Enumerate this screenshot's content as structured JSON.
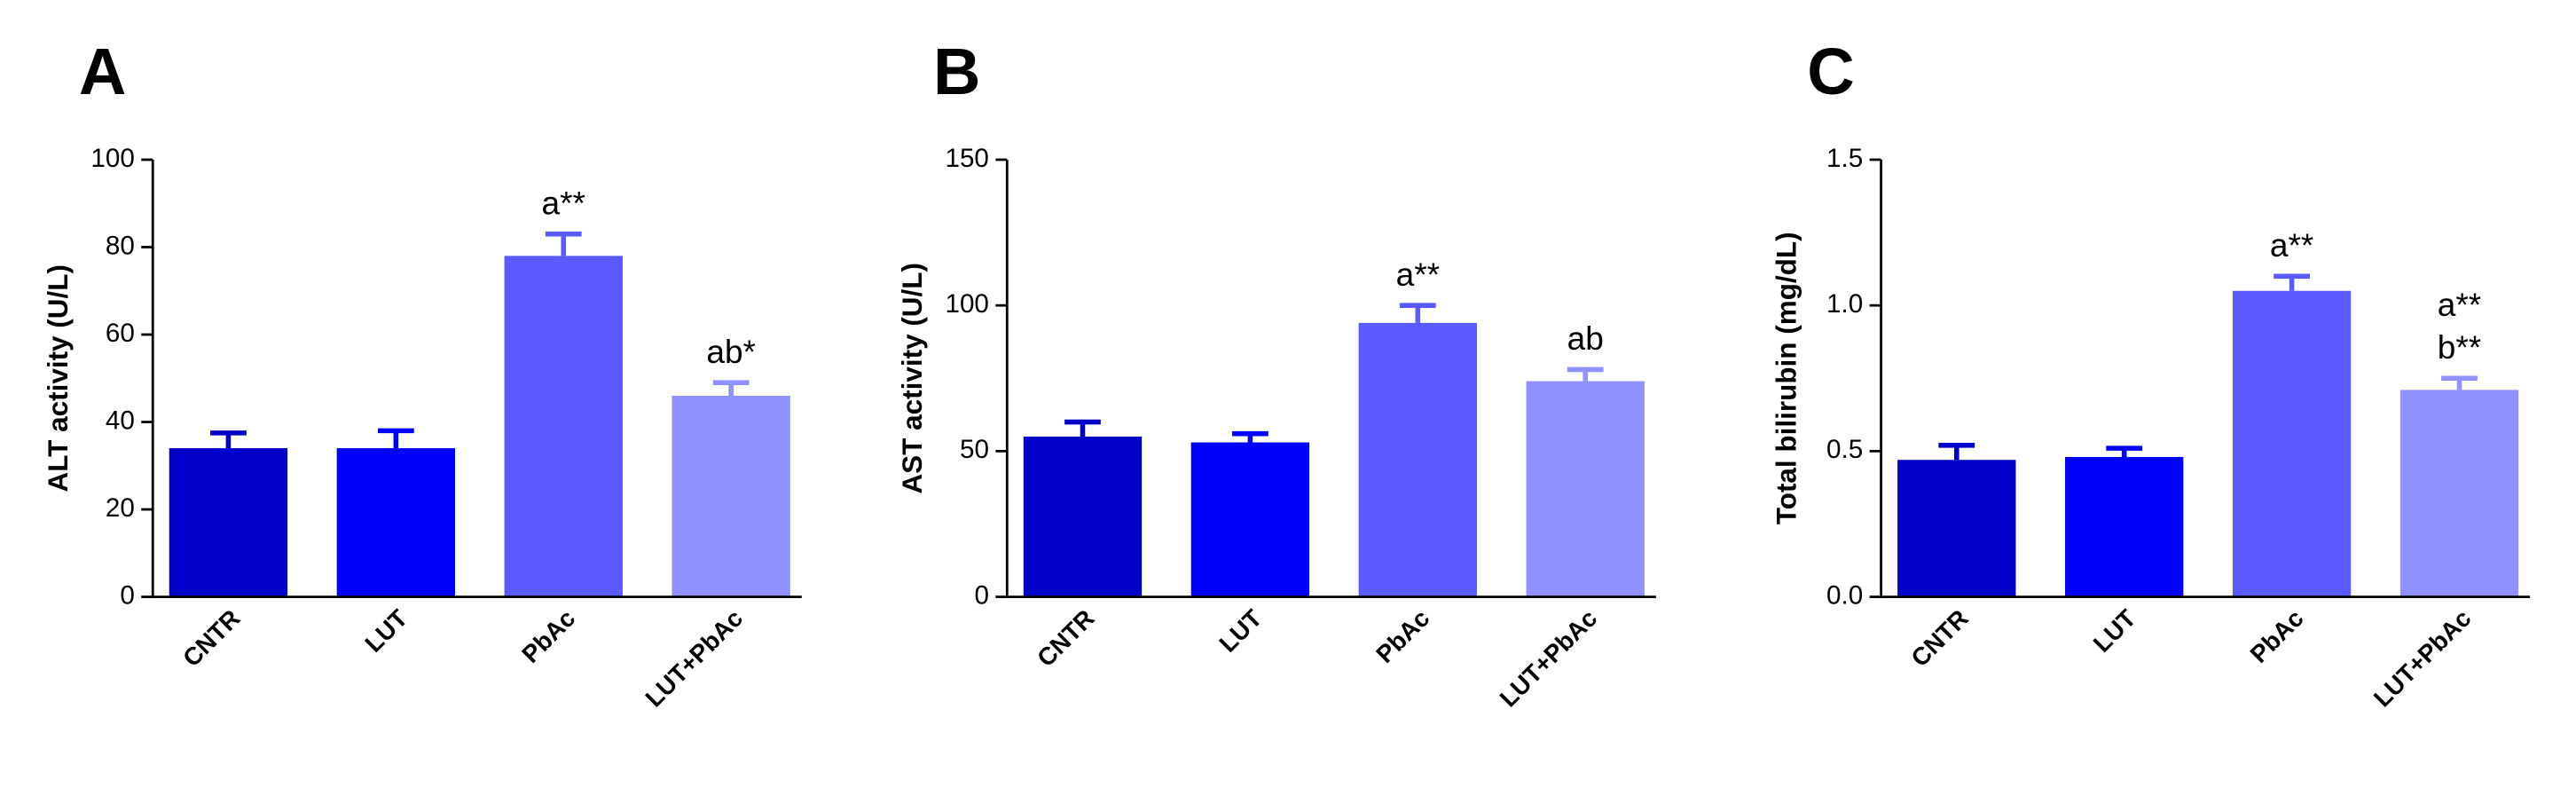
{
  "chart_data": [
    {
      "type": "bar",
      "panel": "A",
      "ylabel": "ALT activity (U/L)",
      "categories": [
        "CNTR",
        "LUT",
        "PbAc",
        "LUT+PbAc"
      ],
      "values": [
        34,
        34,
        78,
        46
      ],
      "errors": [
        3.5,
        4,
        5,
        3
      ],
      "colors": [
        "#0000c8",
        "#0000ff",
        "#5a5aff",
        "#9090ff"
      ],
      "ylim": [
        0,
        100
      ],
      "yticks": [
        0,
        20,
        40,
        60,
        80,
        100
      ],
      "annotations": [
        {
          "x": "PbAc",
          "text": [
            "a**"
          ]
        },
        {
          "x": "LUT+PbAc",
          "text": [
            "ab*"
          ]
        }
      ]
    },
    {
      "type": "bar",
      "panel": "B",
      "ylabel": "AST activity (U/L)",
      "categories": [
        "CNTR",
        "LUT",
        "PbAc",
        "LUT+PbAc"
      ],
      "values": [
        55,
        53,
        94,
        74
      ],
      "errors": [
        5,
        3,
        6,
        4
      ],
      "colors": [
        "#0000c8",
        "#0000ff",
        "#5a5aff",
        "#9090ff"
      ],
      "ylim": [
        0,
        150
      ],
      "yticks": [
        0,
        50,
        100,
        150
      ],
      "annotations": [
        {
          "x": "PbAc",
          "text": [
            "a**"
          ]
        },
        {
          "x": "LUT+PbAc",
          "text": [
            "ab"
          ]
        }
      ]
    },
    {
      "type": "bar",
      "panel": "C",
      "ylabel": "Total bilirubin (mg/dL)",
      "categories": [
        "CNTR",
        "LUT",
        "PbAc",
        "LUT+PbAc"
      ],
      "values": [
        0.47,
        0.48,
        1.05,
        0.71
      ],
      "errors": [
        0.05,
        0.03,
        0.05,
        0.04
      ],
      "colors": [
        "#0000c8",
        "#0000ff",
        "#5a5aff",
        "#9090ff"
      ],
      "ylim": [
        0,
        1.5
      ],
      "yticks": [
        {
          "value": 0,
          "label": "0.0"
        },
        {
          "value": 0.5,
          "label": "0.5"
        },
        {
          "value": 1,
          "label": "1.0"
        },
        {
          "value": 1.5,
          "label": "1.5"
        }
      ],
      "annotations": [
        {
          "x": "PbAc",
          "text": [
            "a**"
          ]
        },
        {
          "x": "LUT+PbAc",
          "text": [
            "a**",
            "b**"
          ]
        }
      ]
    }
  ]
}
